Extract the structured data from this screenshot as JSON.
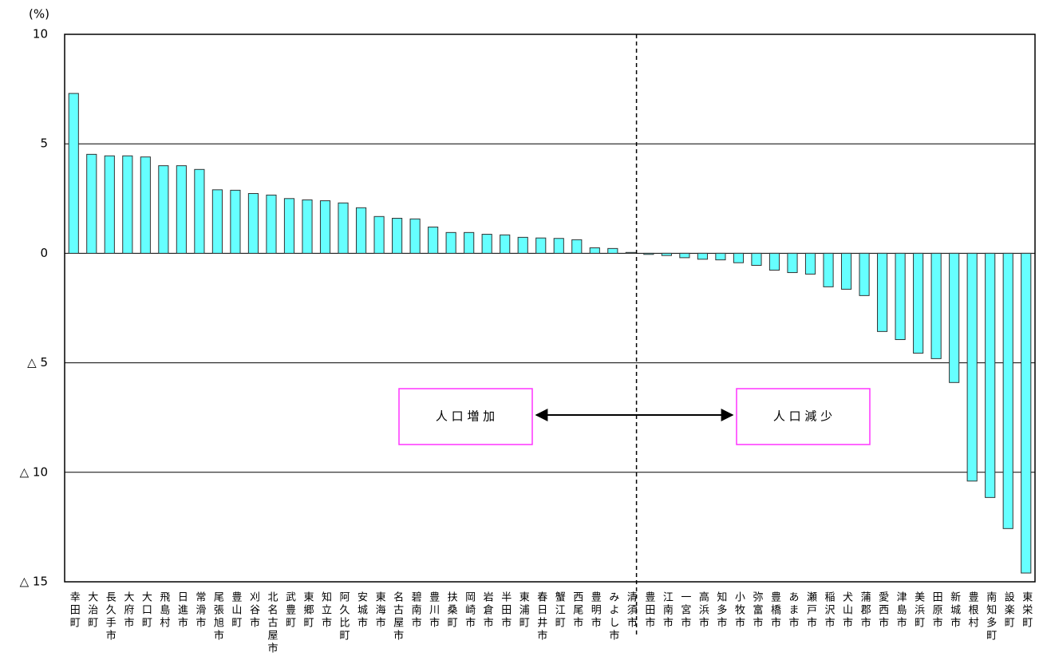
{
  "chart_data": {
    "type": "bar",
    "ylabel": "(%)",
    "categories": [
      "幸田町",
      "大治町",
      "長久手市",
      "大府市",
      "大口町",
      "飛島村",
      "日進市",
      "常滑市",
      "尾張旭市",
      "豊山町",
      "刈谷市",
      "北名古屋市",
      "武豊町",
      "東郷町",
      "知立市",
      "阿久比町",
      "安城市",
      "東海市",
      "名古屋市",
      "碧南市",
      "豊川市",
      "扶桑町",
      "岡崎市",
      "岩倉市",
      "半田市",
      "東浦町",
      "春日井市",
      "蟹江町",
      "西尾市",
      "豊明市",
      "みよし市",
      "清須市",
      "豊田市",
      "江南市",
      "一宮市",
      "高浜市",
      "知多市",
      "小牧市",
      "弥富市",
      "豊橋市",
      "あま市",
      "瀬戸市",
      "稲沢市",
      "犬山市",
      "蒲郡市",
      "愛西市",
      "津島市",
      "美浜町",
      "田原市",
      "新城市",
      "豊根村",
      "南知多町",
      "設楽町",
      "東栄町"
    ],
    "values": [
      7.3,
      4.52,
      4.45,
      4.45,
      4.4,
      4.0,
      4.0,
      3.83,
      2.9,
      2.88,
      2.73,
      2.66,
      2.5,
      2.44,
      2.4,
      2.3,
      2.08,
      1.68,
      1.6,
      1.57,
      1.2,
      0.95,
      0.95,
      0.87,
      0.84,
      0.73,
      0.7,
      0.68,
      0.62,
      0.25,
      0.22,
      0.04,
      -0.05,
      -0.1,
      -0.2,
      -0.27,
      -0.3,
      -0.43,
      -0.55,
      -0.77,
      -0.88,
      -0.95,
      -1.53,
      -1.64,
      -1.93,
      -3.57,
      -3.94,
      -4.56,
      -4.81,
      -5.9,
      -10.4,
      -11.15,
      -12.57,
      -14.6
    ],
    "color": "#66ffff",
    "ylim": [
      -15,
      10
    ],
    "yticks": [
      10,
      5,
      0,
      {
        "value": -5,
        "label": "△ 5"
      },
      {
        "value": -10,
        "label": "△ 10"
      },
      {
        "value": -15,
        "label": "△ 15"
      }
    ],
    "grid": true,
    "annotations": [
      "人 口 増 加",
      "人 口 減 少"
    ]
  }
}
